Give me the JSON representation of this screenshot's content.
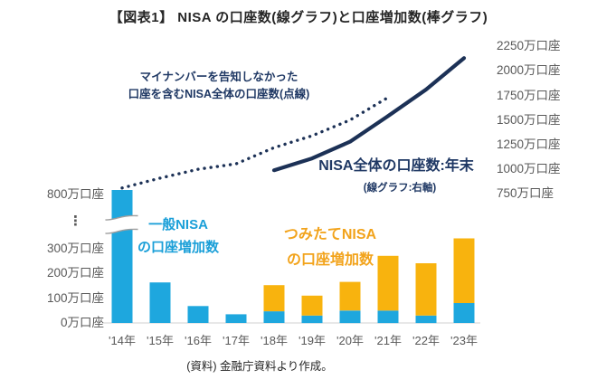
{
  "title": "【図表1】 NISA の口座数(線グラフ)と口座増加数(棒グラフ)",
  "source_note": "(資料) 金融庁資料より作成。",
  "colors": {
    "general_bar": "#1EA7DE",
    "tsumitate_bar": "#F8B30E",
    "line_navy": "#1C3156",
    "annotation_navy": "#1F3864",
    "annotation_blue": "#1A9FD8",
    "annotation_orange": "#F2A31B",
    "axis_text_gray": "#595959",
    "baseline_gray": "#D9D9D9",
    "break_mark_gray": "#9E9E9E",
    "text_black": "#262626"
  },
  "annotations": {
    "dotted_line_note_line1": "マイナンバーを告知しなかった",
    "dotted_line_note_line2": "口座を含むNISA全体の口座数(点線)",
    "general_nisa_line1": "一般NISA",
    "general_nisa_line2": "の口座増加数",
    "tsumitate_line1": "つみたてNISA",
    "tsumitate_line2": "の口座増加数",
    "total_line_label": "NISA全体の口座数:年末",
    "total_line_sublabel": "(線グラフ:右軸)"
  },
  "chart_data": {
    "type": "bar",
    "subtype": "stacked-bar-with-two-lines",
    "categories": [
      "'14年",
      "'15年",
      "'16年",
      "'17年",
      "'18年",
      "'19年",
      "'20年",
      "'21年",
      "'22年",
      "'23年"
    ],
    "unit": "万口座",
    "series": [
      {
        "name": "一般NISAの口座増加数",
        "type": "bar",
        "axis": "left",
        "values": [
          820,
          163,
          68,
          35,
          47,
          30,
          50,
          50,
          30,
          80
        ]
      },
      {
        "name": "つみたてNISAの口座増加数",
        "type": "bar",
        "axis": "left",
        "values": [
          0,
          0,
          0,
          0,
          105,
          80,
          115,
          220,
          210,
          260
        ]
      },
      {
        "name": "マイナンバーを告知しなかった口座を含むNISA全体の口座数(点線)",
        "type": "line",
        "style": "dotted",
        "axis": "right",
        "values": [
          810,
          910,
          1000,
          1055,
          1220,
          1340,
          1500,
          1730,
          null,
          null
        ]
      },
      {
        "name": "NISA全体の口座数:年末",
        "type": "line",
        "style": "solid",
        "axis": "right",
        "values": [
          null,
          null,
          null,
          null,
          990,
          1110,
          1280,
          1540,
          1810,
          2130
        ]
      }
    ],
    "left_axis": {
      "break_above": 300,
      "ticks": [
        {
          "value": 0,
          "label": "0万口座"
        },
        {
          "value": 100,
          "label": "100万口座"
        },
        {
          "value": 200,
          "label": "200万口座"
        },
        {
          "value": 300,
          "label": "300万口座"
        },
        {
          "value": null,
          "label": "⋮"
        },
        {
          "value": 800,
          "label": "800万口座"
        }
      ]
    },
    "right_axis": {
      "ticks": [
        {
          "value": 750,
          "label": "750万口座"
        },
        {
          "value": 1000,
          "label": "1000万口座"
        },
        {
          "value": 1250,
          "label": "1250万口座"
        },
        {
          "value": 1500,
          "label": "1500万口座"
        },
        {
          "value": 1750,
          "label": "1750万口座"
        },
        {
          "value": 2000,
          "label": "2000万口座"
        },
        {
          "value": 2250,
          "label": "2250万口座"
        }
      ]
    },
    "grid": false,
    "legend_position": "none"
  }
}
